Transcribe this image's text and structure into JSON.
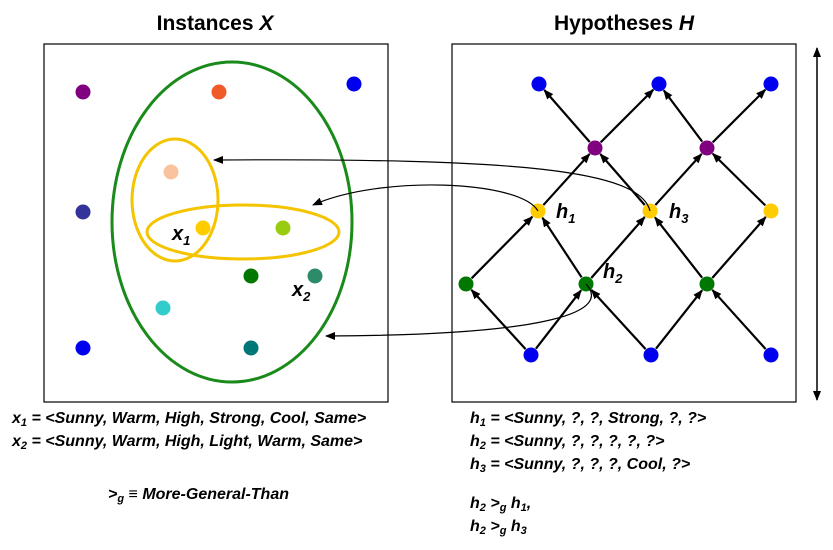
{
  "titles": {
    "instances": {
      "text": "Instances ",
      "var": "X"
    },
    "hypotheses": {
      "text": "Hypotheses ",
      "var": "H"
    }
  },
  "instance_points": [
    {
      "id": "purple",
      "color": "#800080"
    },
    {
      "id": "orange",
      "color": "#f05a28"
    },
    {
      "id": "blue-tr",
      "color": "#0000ee"
    },
    {
      "id": "navy",
      "color": "#333399"
    },
    {
      "id": "peach",
      "color": "#f9c39d"
    },
    {
      "id": "x1-yellow",
      "color": "#ffcc00"
    },
    {
      "id": "lime",
      "color": "#99cc11"
    },
    {
      "id": "green",
      "color": "#007700"
    },
    {
      "id": "x2-teal",
      "color": "#2e8b6a"
    },
    {
      "id": "cyan",
      "color": "#33cccc"
    },
    {
      "id": "blue-bl",
      "color": "#0000ee"
    },
    {
      "id": "dark-teal",
      "color": "#007777"
    }
  ],
  "hypothesis_nodes": [
    {
      "id": "top-1",
      "color": "#0000ee"
    },
    {
      "id": "top-2",
      "color": "#0000ee"
    },
    {
      "id": "top-3",
      "color": "#0000ee"
    },
    {
      "id": "mid-purple-1",
      "color": "#800080"
    },
    {
      "id": "mid-purple-2",
      "color": "#800080"
    },
    {
      "id": "h1",
      "color": "#ffcc00"
    },
    {
      "id": "h3",
      "color": "#ffcc00"
    },
    {
      "id": "right-yellow",
      "color": "#ffcc00"
    },
    {
      "id": "green-left",
      "color": "#007700"
    },
    {
      "id": "h2",
      "color": "#007700"
    },
    {
      "id": "green-right",
      "color": "#007700"
    },
    {
      "id": "bottom-1",
      "color": "#0000ee"
    },
    {
      "id": "bottom-2",
      "color": "#0000ee"
    },
    {
      "id": "bottom-3",
      "color": "#0000ee"
    }
  ],
  "point_labels": {
    "x1": {
      "var": "x",
      "sub": "1"
    },
    "x2": {
      "var": "x",
      "sub": "2"
    },
    "h1": {
      "var": "h",
      "sub": "1"
    },
    "h2": {
      "var": "h",
      "sub": "2"
    },
    "h3": {
      "var": "h",
      "sub": "3"
    }
  },
  "colors": {
    "region_green": "#1a8a1a",
    "region_yellow": "#f5c400",
    "frame": "#000000",
    "arrow": "#000000"
  },
  "definitions": {
    "x1": {
      "var": "x",
      "sub": "1",
      "text": " = <Sunny, Warm, High, Strong, Cool, Same>"
    },
    "x2": {
      "var": "x",
      "sub": "2",
      "text": " = <Sunny, Warm, High, Light, Warm, Same>"
    },
    "h1": {
      "var": "h",
      "sub": "1",
      "text": " = <Sunny, ?, ?, Strong, ?, ?>"
    },
    "h2": {
      "var": "h",
      "sub": "2",
      "text": " = <Sunny, ?, ?, ?, ?, ?>"
    },
    "h3": {
      "var": "h",
      "sub": "3",
      "text": " = <Sunny, ?, ?, ?, Cool, ?>"
    }
  },
  "relation_definition": {
    "op": ">",
    "op_sub": "g",
    "equiv": " ≡ ",
    "text": "More-General-Than"
  },
  "relations": [
    {
      "left": "h",
      "left_sub": "2",
      "op": " >",
      "op_sub": "g",
      "right": " h",
      "right_sub": "1",
      "tail": ","
    },
    {
      "left": "h",
      "left_sub": "2",
      "op": " >",
      "op_sub": "g",
      "right": " h",
      "right_sub": "3",
      "tail": ""
    }
  ]
}
